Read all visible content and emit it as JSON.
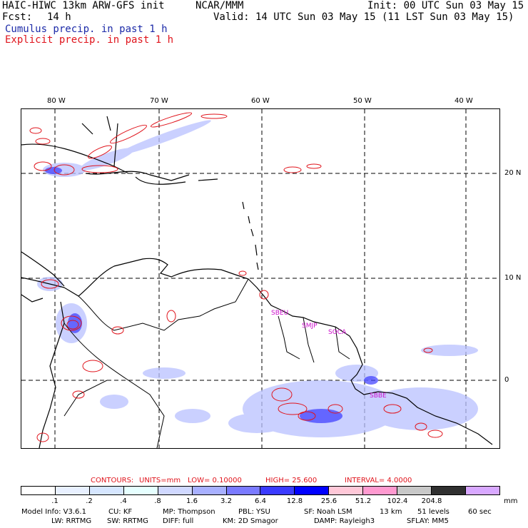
{
  "header": {
    "model_title": "HAIC-HIWC 13km ARW-GFS init",
    "center": "NCAR/MMM",
    "init": "Init: 00 UTC Sun 03 May 15",
    "fcst_label": "Fcst:",
    "fcst_value": "14 h",
    "valid": "Valid: 14 UTC Sun 03 May 15 (11 LST Sun 03 May 15)",
    "legend_cumulus": "Cumulus precip. in past 1 h",
    "legend_explicit": "Explicit precip. in past 1 h"
  },
  "map": {
    "lon_labels": [
      "80 W",
      "70 W",
      "60 W",
      "50 W",
      "40 W"
    ],
    "lat_labels": [
      "20 N",
      "10 N",
      "0"
    ],
    "station_labels": [
      "SBEU",
      "SMJP",
      "SOCA",
      "SBBE"
    ]
  },
  "contours": {
    "label": "CONTOURS:",
    "units": "UNITS=mm",
    "low": "LOW= 0.10000",
    "high": "HIGH= 25.600",
    "interval": "INTERVAL= 4.0000"
  },
  "colorbar": {
    "ticks": [
      ".1",
      ".2",
      ".4",
      ".8",
      "1.6",
      "3.2",
      "6.4",
      "12.8",
      "25.6",
      "51.2",
      "102.4",
      "204.8"
    ],
    "unit": "mm",
    "colors": [
      "#ffffff",
      "#e8f0ff",
      "#d6e6ff",
      "#e6ffff",
      "#d0d8ff",
      "#a8b0ff",
      "#7a7aff",
      "#3a3aff",
      "#0000ff",
      "#ffc8d8",
      "#ff9ad0",
      "#c8c8c8",
      "#303030",
      "#d8a8ff"
    ]
  },
  "footer": {
    "line1": [
      "Model Info: V3.6.1",
      "CU: KF",
      "MP: Thompson",
      "PBL: YSU",
      "SF: Noah LSM",
      "13 km",
      "51 levels",
      "60 sec"
    ],
    "line2": [
      "LW: RRTMG",
      "SW: RRTMG",
      "DIFF: full",
      "KM: 2D Smagor",
      "DAMP: Rayleigh3",
      "SFLAY: MM5"
    ]
  }
}
